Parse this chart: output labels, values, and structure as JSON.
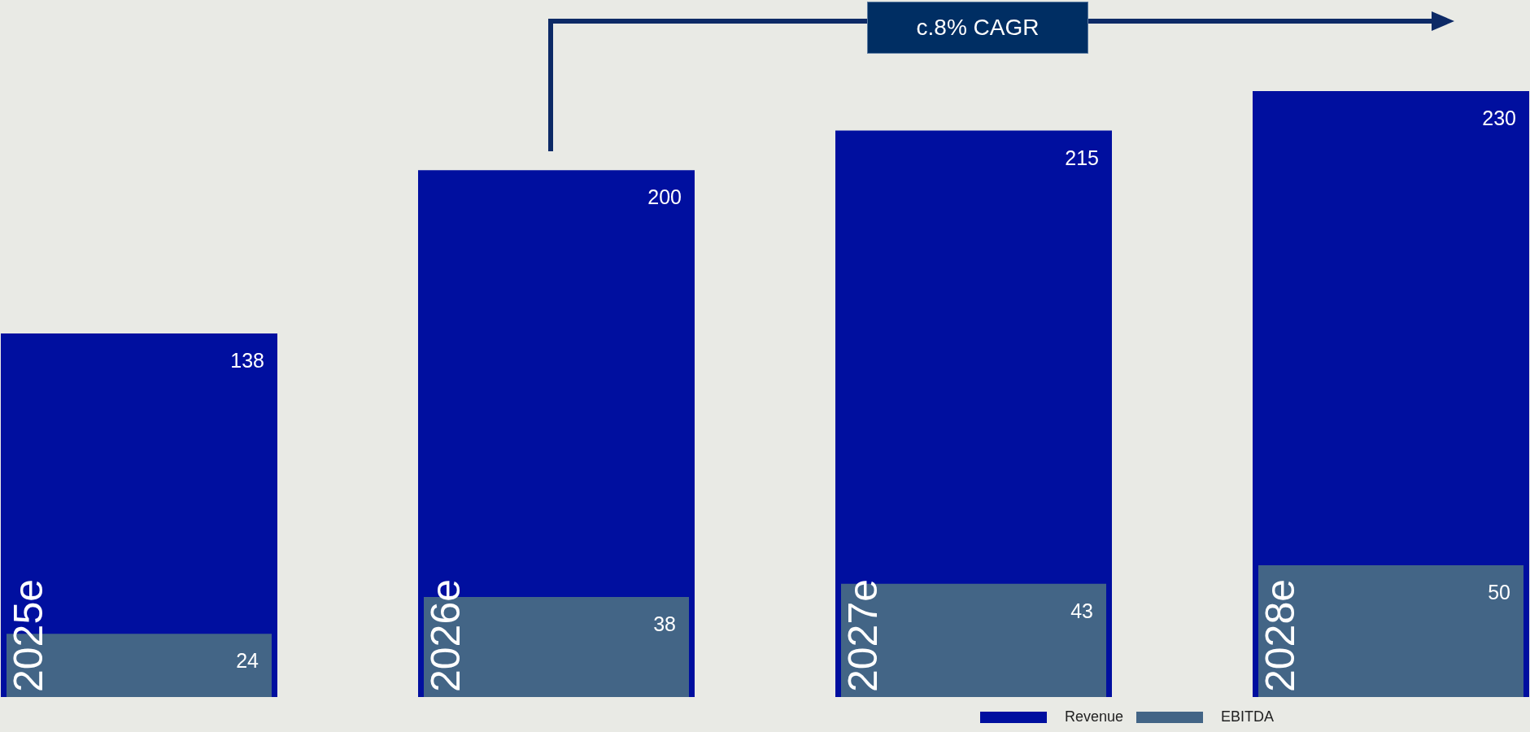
{
  "chart_data": {
    "type": "bar",
    "categories": [
      "2025e",
      "2026e",
      "2027e",
      "2028e"
    ],
    "series": [
      {
        "name": "Revenue",
        "color": "#000f9f",
        "values": [
          138,
          200,
          215,
          230
        ]
      },
      {
        "name": "EBITDA",
        "color": "#436586",
        "values": [
          24,
          38,
          43,
          50
        ]
      }
    ],
    "data_labels": true,
    "legend": "bottom right",
    "grid": false,
    "annotations": [
      "c.8% CAGR"
    ]
  }
}
